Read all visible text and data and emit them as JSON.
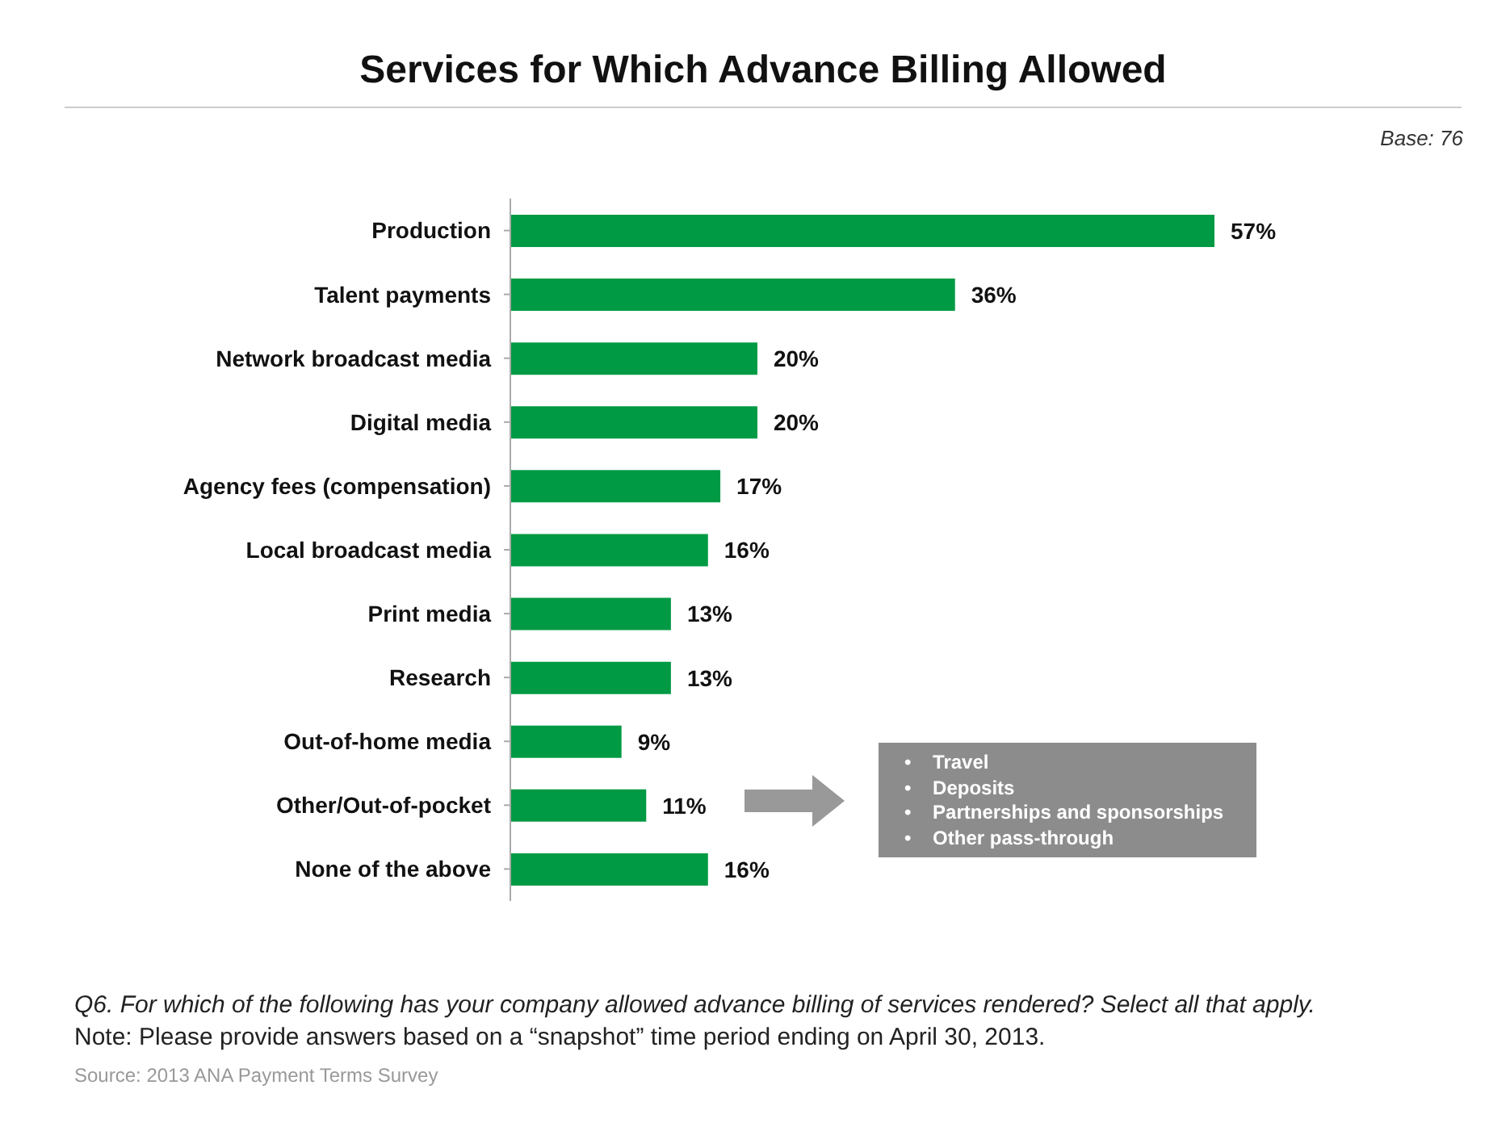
{
  "chart_data": {
    "type": "bar",
    "orientation": "horizontal",
    "title": "Services for Which Advance Billing Allowed",
    "subtitle": "Base: 76",
    "categories": [
      "Production",
      "Talent payments",
      "Network broadcast media",
      "Digital media",
      "Agency fees (compensation)",
      "Local broadcast media",
      "Print media",
      "Research",
      "Out-of-home media",
      "Other/Out-of-pocket",
      "None of the above"
    ],
    "values": [
      57,
      36,
      20,
      20,
      17,
      16,
      13,
      13,
      9,
      11,
      16
    ],
    "value_labels": [
      "57%",
      "36%",
      "20%",
      "20%",
      "17%",
      "16%",
      "13%",
      "13%",
      "9%",
      "11%",
      "16%"
    ],
    "color": "#009a44",
    "annotations": [
      "•    Travel",
      "•    Deposits",
      "•    Partnerships and sponsorships",
      "•    Other pass-through",
      "Q6. For which of the following has your company allowed advance billing of services rendered? Select all that apply.",
      "Note: Please provide answers based on a “snapshot” time period ending on April 30, 2013.",
      "Source: 2013 ANA Payment Terms Survey"
    ]
  }
}
